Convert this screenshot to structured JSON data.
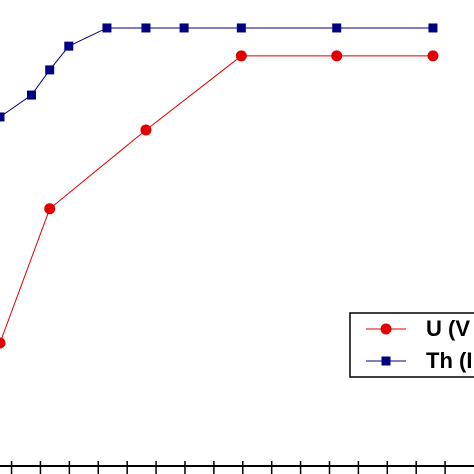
{
  "chart_data": {
    "type": "line",
    "xlim": [
      -0.4,
      16.0
    ],
    "ylim": [
      0,
      100
    ],
    "xticks": [
      0,
      1,
      2,
      3,
      4,
      5,
      6,
      7,
      8,
      9,
      10,
      11,
      12,
      13,
      14,
      15
    ],
    "legend": "lower-right",
    "series": [
      {
        "name": "U (V",
        "color": "#e00000",
        "marker": "circle",
        "x": [
          -0.4,
          1.32,
          4.65,
          7.95,
          11.25,
          14.58
        ],
        "values": [
          26.4,
          55.2,
          72.1,
          88.0,
          88.0,
          88.0
        ]
      },
      {
        "name": "Th (I",
        "color": "#000080",
        "marker": "square",
        "x": [
          -0.4,
          0.69,
          1.32,
          1.98,
          3.3,
          4.65,
          5.97,
          7.95,
          11.25,
          14.58
        ],
        "values": [
          74.9,
          79.6,
          85.0,
          90.1,
          94.0,
          94.0,
          94.0,
          94.0,
          94.0,
          94.0
        ]
      }
    ]
  }
}
